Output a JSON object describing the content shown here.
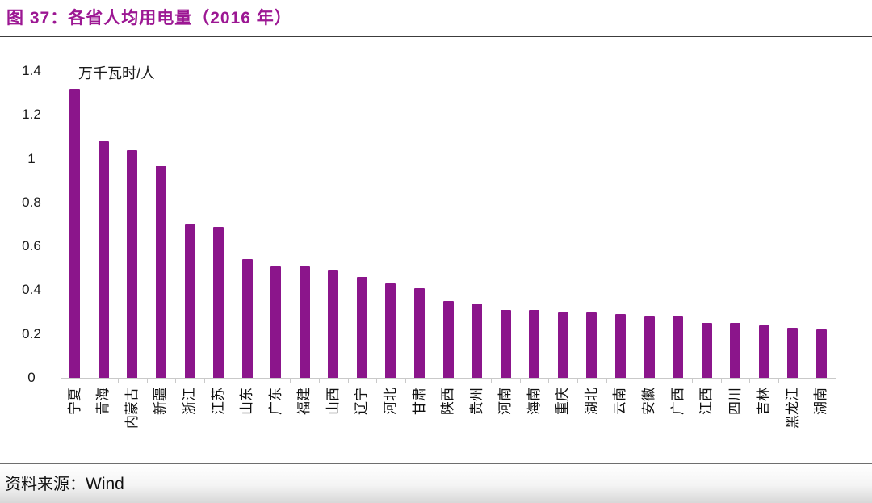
{
  "header": {
    "title": "图 37：各省人均用电量（2016 年）"
  },
  "chart_data": {
    "type": "bar",
    "title": "各省人均用电量（2016 年）",
    "figure_label": "图 37",
    "unit_label": "万千瓦时/人",
    "categories": [
      "宁夏",
      "青海",
      "内蒙古",
      "新疆",
      "浙江",
      "江苏",
      "山东",
      "广东",
      "福建",
      "山西",
      "辽宁",
      "河北",
      "甘肃",
      "陕西",
      "贵州",
      "河南",
      "海南",
      "重庆",
      "湖北",
      "云南",
      "安徽",
      "广西",
      "江西",
      "四川",
      "吉林",
      "黑龙江",
      "湖南"
    ],
    "values": [
      1.32,
      1.08,
      1.04,
      0.97,
      0.7,
      0.69,
      0.54,
      0.51,
      0.51,
      0.49,
      0.46,
      0.43,
      0.41,
      0.35,
      0.34,
      0.31,
      0.31,
      0.3,
      0.3,
      0.29,
      0.28,
      0.28,
      0.25,
      0.25,
      0.24,
      0.23,
      0.22
    ],
    "xlabel": "",
    "ylabel": "万千瓦时/人",
    "ylim": [
      0,
      1.4
    ],
    "ytick_values": [
      0,
      0.2,
      0.4,
      0.6,
      0.8,
      1.0,
      1.2,
      1.4
    ],
    "ytick_labels": [
      "0",
      "0.2",
      "0.4",
      "0.6",
      "0.8",
      "1",
      "1.2",
      "1.4"
    ],
    "grid": false,
    "legend": "none",
    "bar_color": "#8B158B"
  },
  "footer": {
    "source_label": "资料来源：",
    "source_value": "Wind"
  },
  "colors": {
    "title": "#9C1793",
    "bar": "#8B158B",
    "axis_line": "#C9C9C9",
    "tick": "#C9C9C9",
    "label_text": "#1A1A1A",
    "title_rule": "#3C3C3C",
    "footer_rule": "#6E6E6E"
  }
}
